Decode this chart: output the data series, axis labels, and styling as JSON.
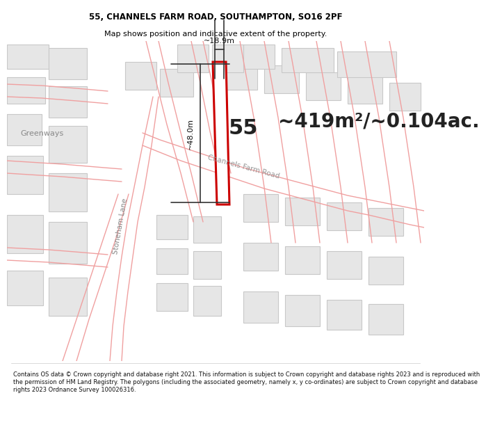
{
  "title_line1": "55, CHANNELS FARM ROAD, SOUTHAMPTON, SO16 2PF",
  "title_line2": "Map shows position and indicative extent of the property.",
  "area_text": "~419m²/~0.104ac.",
  "plot_number": "55",
  "dim_height": "~48.0m",
  "dim_width": "~18.9m",
  "road_label1": "Stoneham Lane",
  "road_label2": "Channels Farm Road",
  "road_label3": "Greenways",
  "footer": "Contains OS data © Crown copyright and database right 2021. This information is subject to Crown copyright and database rights 2023 and is reproduced with the permission of HM Land Registry. The polygons (including the associated geometry, namely x, y co-ordinates) are subject to Crown copyright and database rights 2023 Ordnance Survey 100026316.",
  "map_bg": "#f7f7f7",
  "plot_color": "#cc0000",
  "road_line_color": "#f0a0a0",
  "building_fill": "#e6e6e6",
  "building_edge": "#c8c8c8",
  "white": "#ffffff",
  "title_fontsize": 8.5,
  "subtitle_fontsize": 8.0,
  "area_fontsize": 20,
  "plot_label_fontsize": 22,
  "road_fontsize": 7.5,
  "dim_fontsize": 8.0,
  "footer_fontsize": 6.0
}
